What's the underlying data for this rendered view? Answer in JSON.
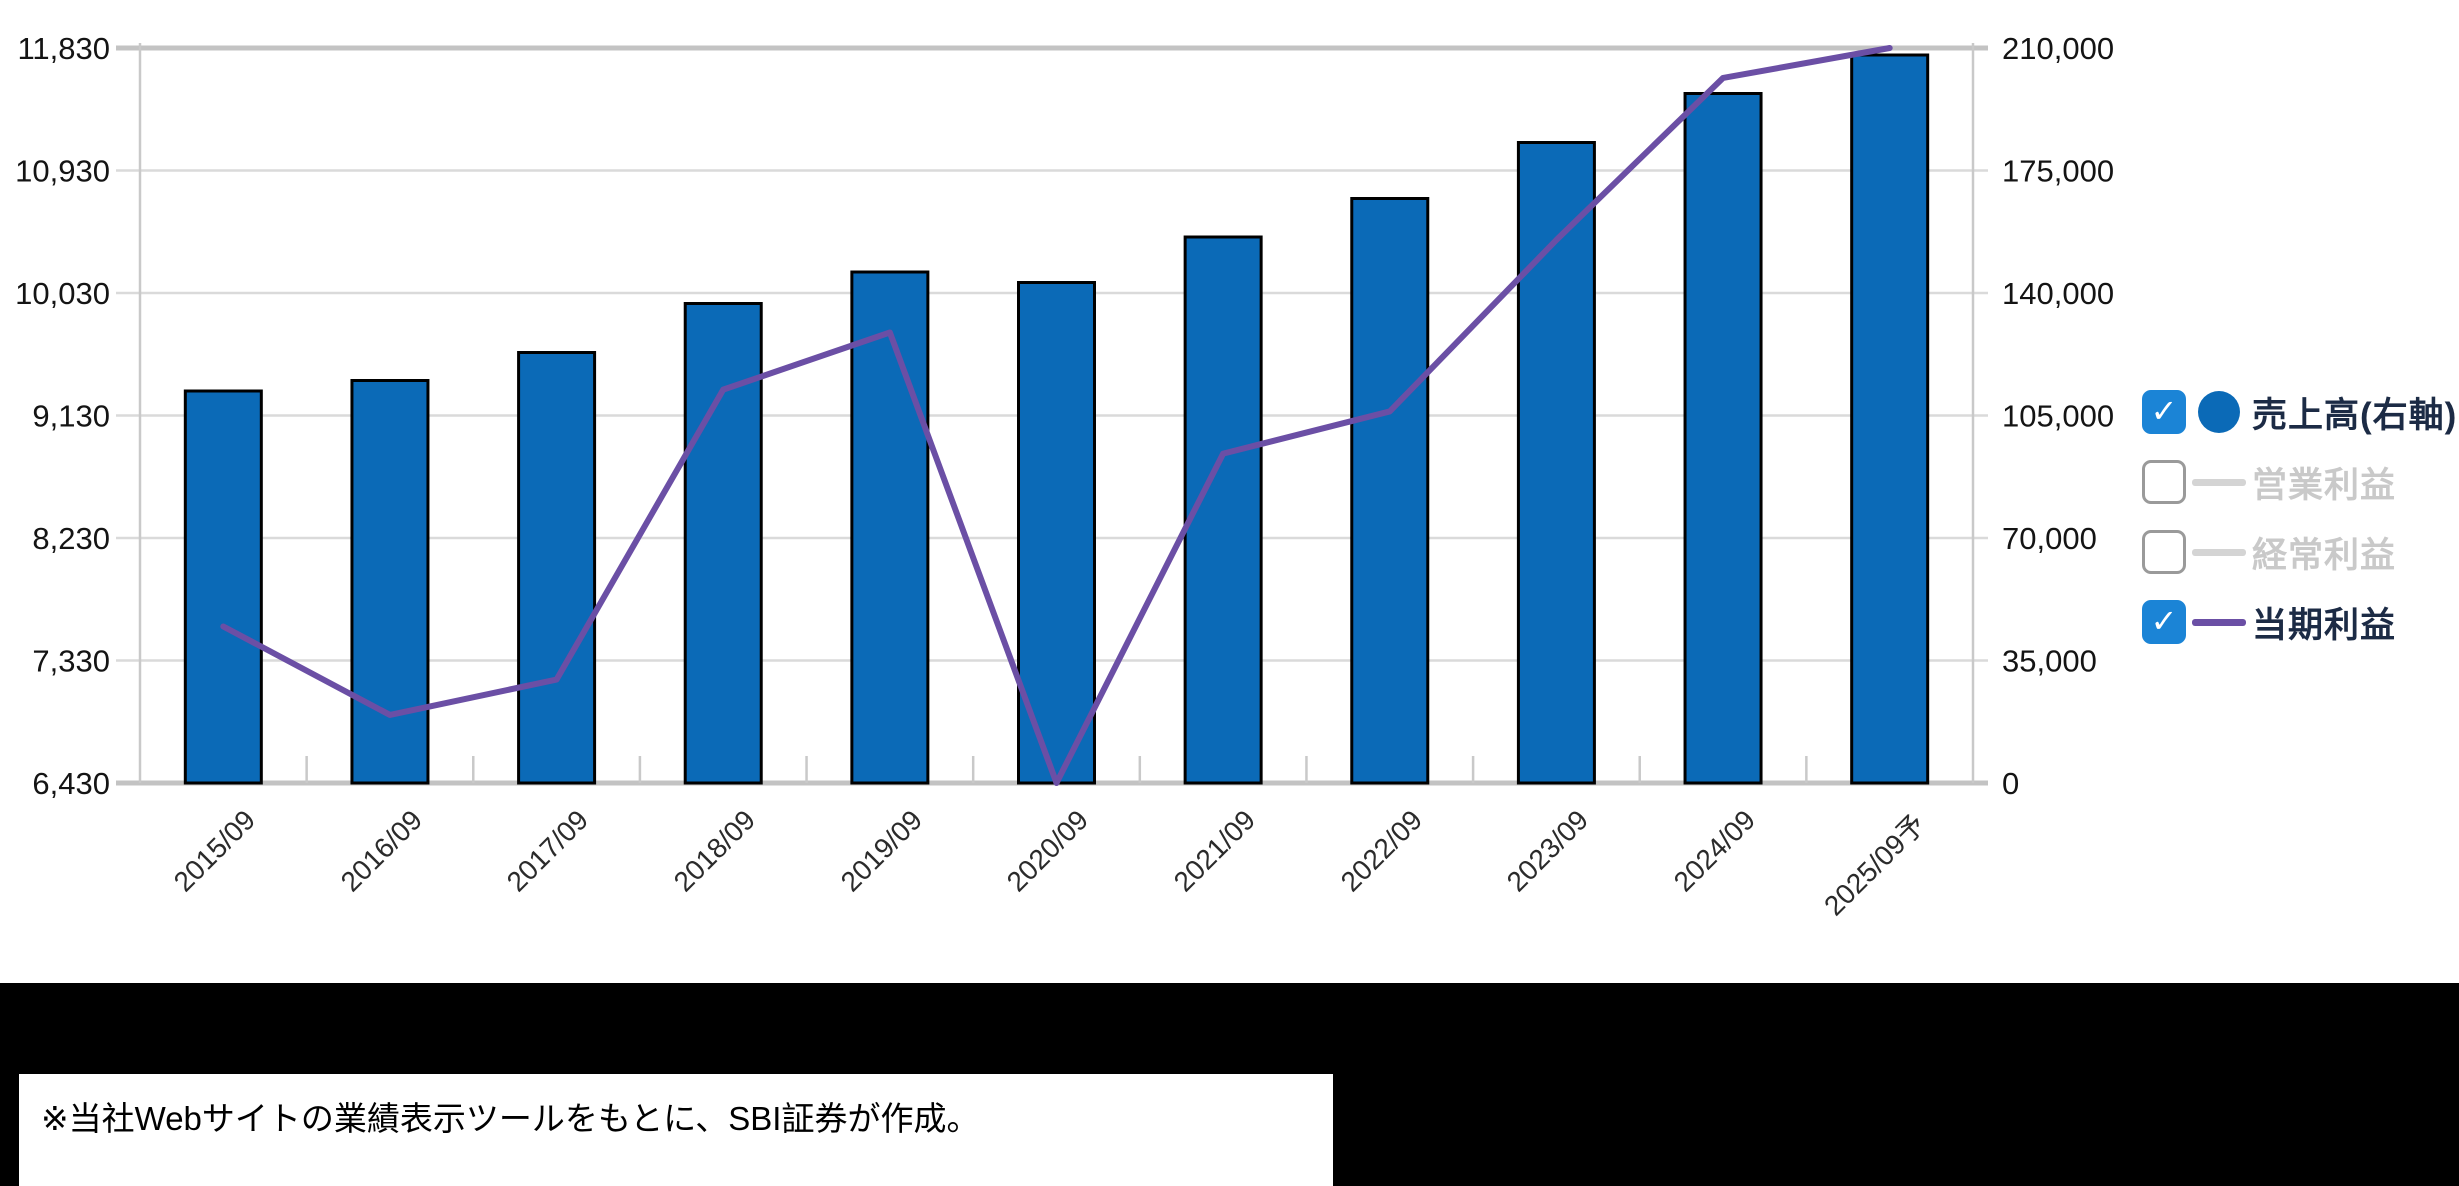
{
  "chart_data": {
    "type": "bar",
    "subtype": "bar-line-combo",
    "categories": [
      "2015/09",
      "2016/09",
      "2017/09",
      "2018/09",
      "2019/09",
      "2020/09",
      "2021/09",
      "2022/09",
      "2023/09",
      "2024/09",
      "2025/09予"
    ],
    "series": [
      {
        "name": "売上高(右軸)",
        "type": "bar",
        "axis": "right",
        "color": "#0b6ab7",
        "values": [
          112000,
          115000,
          123000,
          137000,
          146000,
          143000,
          156000,
          167000,
          183000,
          197000,
          208000
        ]
      },
      {
        "name": "当期利益",
        "type": "line",
        "axis": "left",
        "color": "#6b4fa5",
        "values": [
          7580,
          6930,
          7190,
          9320,
          9740,
          6430,
          8850,
          9160,
          10420,
          11610,
          11830
        ]
      }
    ],
    "hidden_series": [
      "営業利益",
      "経常利益"
    ],
    "left_axis": {
      "min": 6430,
      "max": 11830,
      "tick_labels": [
        "11,830",
        "10,930",
        "10,030",
        "9,130",
        "8,230",
        "7,330",
        "6,430"
      ]
    },
    "right_axis": {
      "min": 0,
      "max": 210000,
      "tick_labels": [
        "210,000",
        "175,000",
        "140,000",
        "105,000",
        "70,000",
        "35,000",
        "0"
      ]
    },
    "grid": true,
    "legend_position": "right"
  },
  "legend": {
    "check_glyph": "✓",
    "checkbox_checked_color": "#1b84d6",
    "items": [
      {
        "label": "売上高(右軸)",
        "checked": true,
        "marker": "circle",
        "color": "#0b6ab7",
        "text_color": "#1c2b45"
      },
      {
        "label": "営業利益",
        "checked": false,
        "marker": "line",
        "color": "#d4d4d4",
        "text_color": "#c9c9c9"
      },
      {
        "label": "経常利益",
        "checked": false,
        "marker": "line",
        "color": "#d4d4d4",
        "text_color": "#c9c9c9"
      },
      {
        "label": "当期利益",
        "checked": true,
        "marker": "line",
        "color": "#6b4fa5",
        "text_color": "#1c2b45"
      }
    ]
  },
  "footer": {
    "note": "※当社Webサイトの業績表示ツールをもとに、SBI証券が作成。"
  },
  "colors": {
    "bar": "#0b6ab7",
    "line": "#6b4fa5",
    "grid_minor": "#dadada",
    "grid_major": "#c3c3c3",
    "axis_edge": "#c9c9c9",
    "tick_text": "#141414",
    "xlabel_text": "#2b2b2b"
  }
}
